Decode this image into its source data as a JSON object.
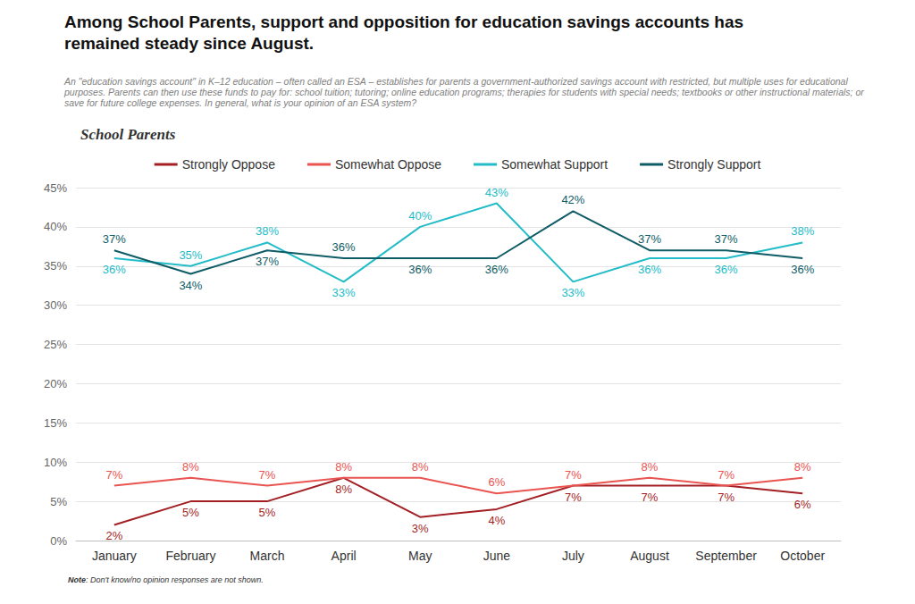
{
  "chart_data": {
    "type": "line",
    "title": "Among School Parents, support and opposition for education savings accounts has remained steady since August.",
    "subtitle": "An \"education savings account\" in K–12 education – often called an ESA – establishes for parents a government-authorized savings account with restricted, but multiple uses for educational purposes. Parents can then use these funds to pay for: school tuition; tutoring; online education programs; therapies for students with special needs; textbooks or other instructional materials; or save for future college expenses. In general, what is your opinion of an ESA system?",
    "annotations": [
      "School Parents",
      "Note: Don't know/no opinion responses are not shown."
    ],
    "categories": [
      "January",
      "February",
      "March",
      "April",
      "May",
      "June",
      "July",
      "August",
      "September",
      "October"
    ],
    "series": [
      {
        "name": "Strongly Oppose",
        "color": "#a31f24",
        "values": [
          2,
          5,
          5,
          8,
          3,
          4,
          7,
          7,
          7,
          6
        ],
        "value_labels": [
          "2%",
          "5%",
          "5%",
          "8%",
          "3%",
          "4%",
          "7%",
          "7%",
          "7%",
          "6%"
        ]
      },
      {
        "name": "Somewhat Oppose",
        "color": "#ea5450",
        "values": [
          7,
          8,
          7,
          8,
          8,
          6,
          7,
          8,
          7,
          8
        ],
        "value_labels": [
          "7%",
          "8%",
          "7%",
          "8%",
          "8%",
          "6%",
          "7%",
          "8%",
          "7%",
          "8%"
        ]
      },
      {
        "name": "Somewhat Support",
        "color": "#22bcc8",
        "values": [
          36,
          35,
          38,
          33,
          40,
          43,
          33,
          36,
          36,
          38
        ],
        "value_labels": [
          "36%",
          "35%",
          "38%",
          "33%",
          "40%",
          "43%",
          "33%",
          "36%",
          "36%",
          "38%"
        ]
      },
      {
        "name": "Strongly Support",
        "color": "#0f5c66",
        "values": [
          37,
          34,
          37,
          36,
          36,
          36,
          42,
          37,
          37,
          36
        ],
        "value_labels": [
          "37%",
          "34%",
          "37%",
          "36%",
          "36%",
          "36%",
          "42%",
          "37%",
          "37%",
          "36%"
        ]
      }
    ],
    "ylim": [
      0,
      45
    ],
    "yticks": [
      {
        "value": 0,
        "label": "0%"
      },
      {
        "value": 5,
        "label": "5%"
      },
      {
        "value": 10,
        "label": "10%"
      },
      {
        "value": 15,
        "label": "15%"
      },
      {
        "value": 20,
        "label": "20%"
      },
      {
        "value": 25,
        "label": "25%"
      },
      {
        "value": 30,
        "label": "30%"
      },
      {
        "value": 35,
        "label": "35%"
      },
      {
        "value": 40,
        "label": "40%"
      },
      {
        "value": 45,
        "label": "45%"
      }
    ],
    "grid": true,
    "legend": "top",
    "data_labels": true
  }
}
